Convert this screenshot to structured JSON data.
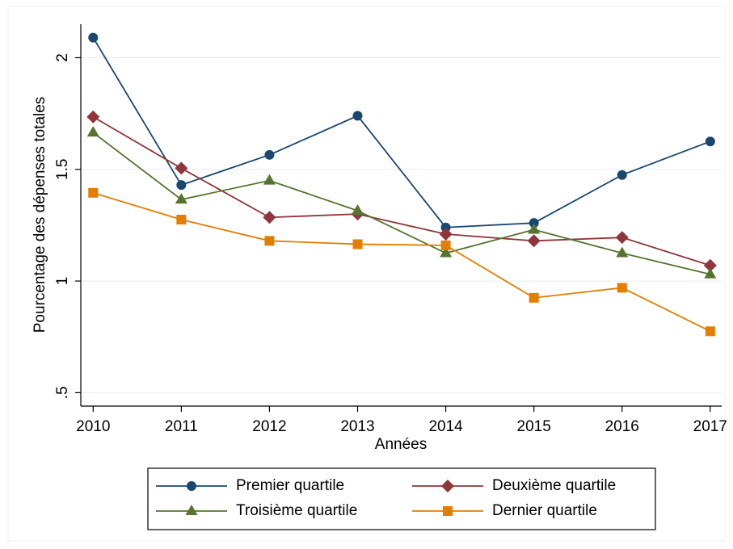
{
  "chart_data": {
    "type": "line",
    "x_label": "Années",
    "y_label": "Pourcentage des dépenses totales",
    "x": [
      2010,
      2011,
      2012,
      2013,
      2014,
      2015,
      2016,
      2017
    ],
    "xlim": [
      2009.86,
      2017.13
    ],
    "xticks": [
      2010,
      2011,
      2012,
      2013,
      2014,
      2015,
      2016,
      2017
    ],
    "ylim": [
      0.44,
      2.15
    ],
    "yticks": [
      {
        "value": 0.5,
        "label": ".5"
      },
      1,
      1.5,
      2
    ],
    "grid": true,
    "series": [
      {
        "name": "Premier quartile",
        "color": "#1a476f",
        "marker": "circle",
        "values": [
          2.09,
          1.43,
          1.565,
          1.74,
          1.24,
          1.26,
          1.475,
          1.625
        ]
      },
      {
        "name": "Deuxième quartile",
        "color": "#90353b",
        "marker": "diamond",
        "values": [
          1.735,
          1.505,
          1.285,
          1.3,
          1.21,
          1.18,
          1.195,
          1.07
        ]
      },
      {
        "name": "Troisième quartile",
        "color": "#55752f",
        "marker": "triangle",
        "values": [
          1.665,
          1.365,
          1.45,
          1.315,
          1.125,
          1.23,
          1.125,
          1.03
        ]
      },
      {
        "name": "Dernier quartile",
        "color": "#e37e00",
        "marker": "square",
        "values": [
          1.395,
          1.275,
          1.18,
          1.165,
          1.16,
          0.925,
          0.97,
          0.775
        ]
      }
    ]
  }
}
